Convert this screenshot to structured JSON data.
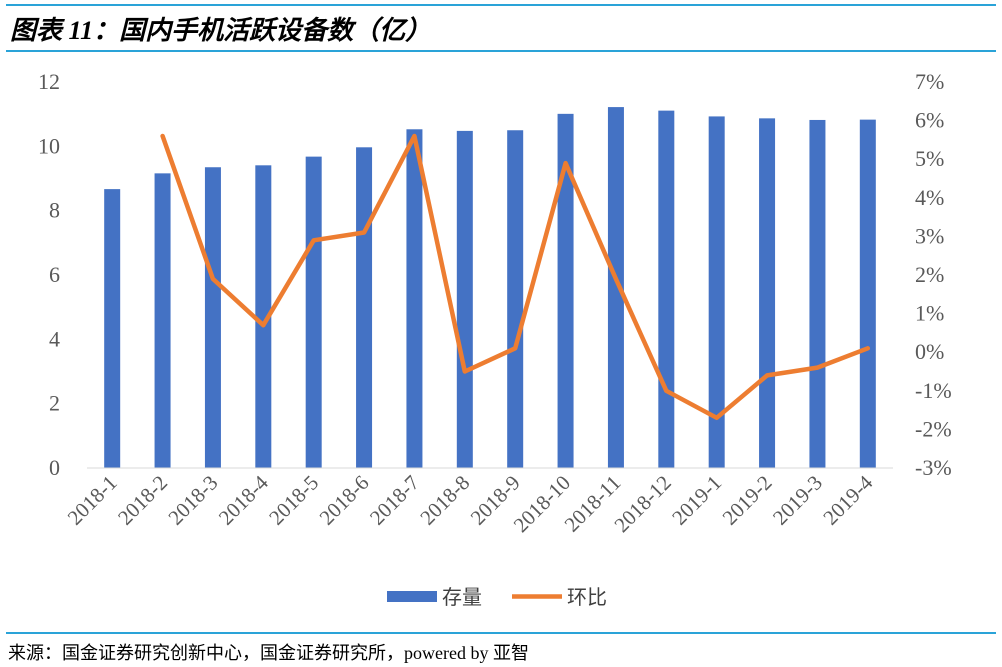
{
  "title": "图表 11：国内手机活跃设备数（亿）",
  "source": "来源：国金证券研究创新中心，国金证券研究所，powered by 亚智",
  "colors": {
    "bar": "#4472c4",
    "line": "#ed7d31",
    "rule": "#2aa3d8",
    "axis_text": "#595959"
  },
  "chart_data": {
    "type": "bar",
    "categories": [
      "2018-1",
      "2018-2",
      "2018-3",
      "2018-4",
      "2018-5",
      "2018-6",
      "2018-7",
      "2018-8",
      "2018-9",
      "2018-10",
      "2018-11",
      "2018-12",
      "2019-1",
      "2019-2",
      "2019-3",
      "2019-4"
    ],
    "series": [
      {
        "name": "存量",
        "type": "bar",
        "axis": "left",
        "values": [
          8.67,
          9.16,
          9.35,
          9.41,
          9.68,
          9.97,
          10.53,
          10.48,
          10.5,
          11.01,
          11.22,
          11.11,
          10.93,
          10.87,
          10.82,
          10.83
        ]
      },
      {
        "name": "环比",
        "type": "line",
        "axis": "right",
        "unit": "%",
        "values": [
          null,
          5.6,
          1.9,
          0.7,
          2.9,
          3.1,
          5.6,
          -0.5,
          0.1,
          4.9,
          1.9,
          -1.0,
          -1.7,
          -0.6,
          -0.4,
          0.1
        ]
      }
    ],
    "y_left": {
      "min": 0,
      "max": 12,
      "ticks": [
        "0",
        "2",
        "4",
        "6",
        "8",
        "10",
        "12"
      ]
    },
    "y_right": {
      "min": -3,
      "max": 7,
      "ticks": [
        "-3%",
        "-2%",
        "-1%",
        "0%",
        "1%",
        "2%",
        "3%",
        "4%",
        "5%",
        "6%",
        "7%"
      ]
    },
    "legend": {
      "position": "bottom",
      "items": [
        "存量",
        "环比"
      ]
    },
    "grid": false
  }
}
